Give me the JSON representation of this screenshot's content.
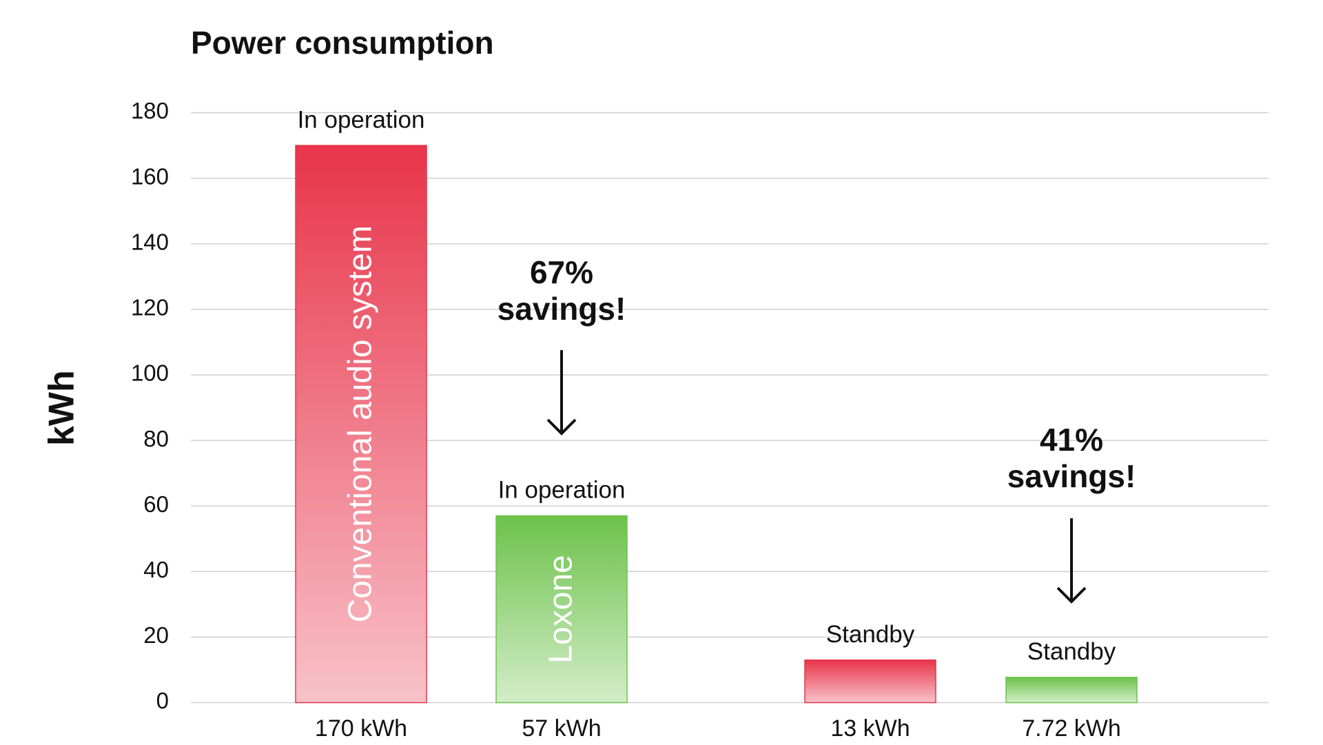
{
  "chart_data": {
    "type": "bar",
    "title": "Power consumption",
    "y_label": "kWh",
    "categories": [
      "In operation",
      "In operation",
      "Standby",
      "Standby"
    ],
    "values": [
      170,
      57,
      13,
      7.72
    ],
    "value_labels": [
      "170 kWh",
      "57 kWh",
      "13 kWh",
      "7.72 kWh"
    ],
    "bar_names": [
      "Conventional audio system",
      "Loxone",
      null,
      null
    ],
    "colors": [
      "#e8344a",
      "#6cc24a",
      "#e8344a",
      "#6cc24a"
    ],
    "ylim": [
      0,
      180
    ],
    "yticks": [
      0,
      20,
      40,
      60,
      80,
      100,
      120,
      140,
      160,
      180
    ],
    "grid": true,
    "annotations": [
      {
        "lines": [
          "67%",
          "savings!"
        ]
      },
      {
        "lines": [
          "41%",
          "savings!"
        ]
      }
    ]
  }
}
